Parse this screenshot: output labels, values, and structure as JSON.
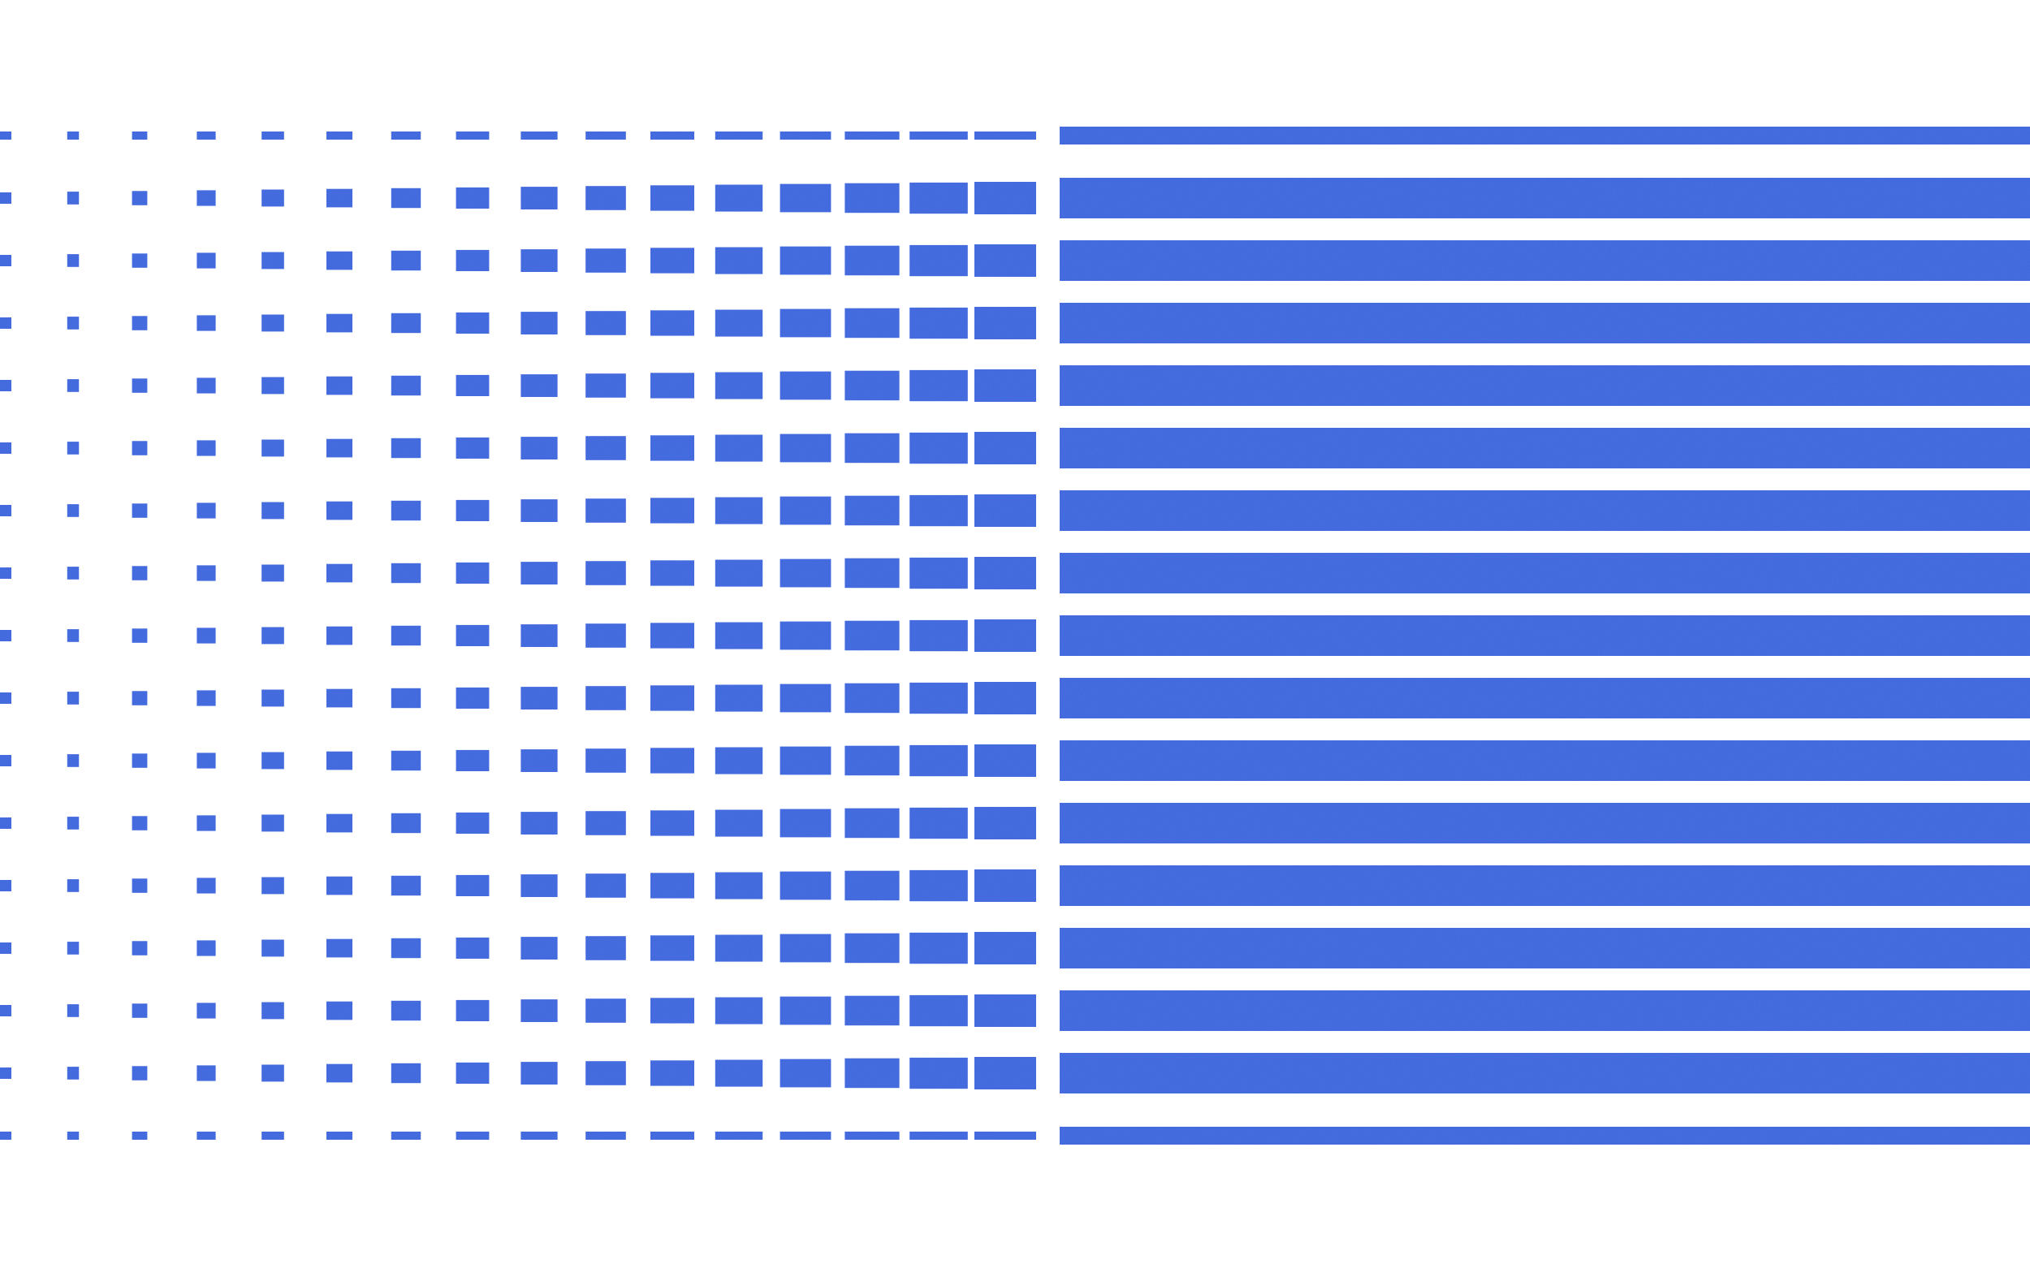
{
  "pattern": {
    "fill_color": "#4a72e6",
    "background_color": "#ffffff",
    "columns_of_blocks": 16,
    "rows": 17,
    "style": "halftone gradient from small square dots to solid horizontal stripes"
  }
}
